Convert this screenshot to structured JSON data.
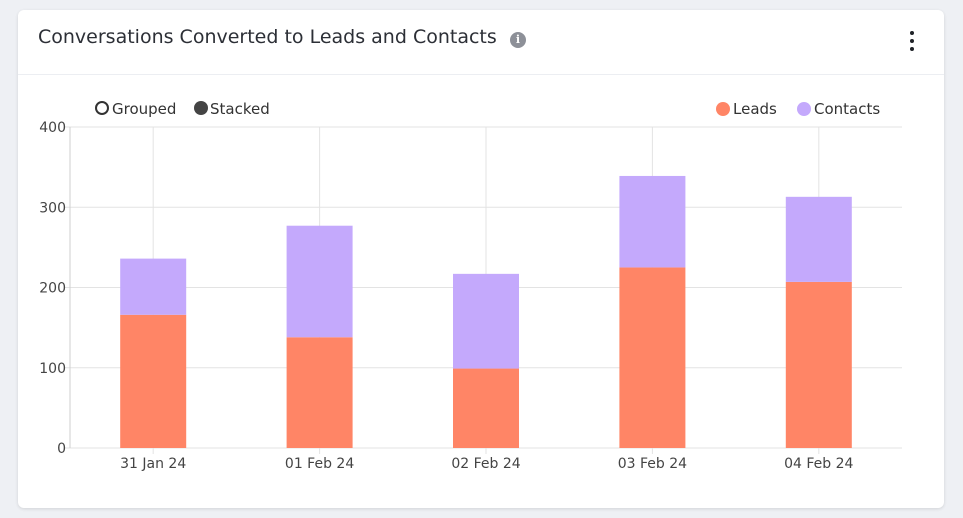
{
  "card": {
    "title": "Conversations Converted to Leads and Contacts",
    "info_icon": "info-icon",
    "menu_icon": "kebab-menu-icon"
  },
  "mode_options": [
    {
      "label": "Grouped",
      "selected": false
    },
    {
      "label": "Stacked",
      "selected": true
    }
  ],
  "colors": {
    "leads": "#ff8566",
    "contacts": "#c4a9fc",
    "grid": "#e3e3e3",
    "axis": "#555555",
    "tick_text": "#444444"
  },
  "chart_data": {
    "type": "bar",
    "stacked": true,
    "title": "Conversations Converted to Leads and Contacts",
    "categories": [
      "31 Jan 24",
      "01 Feb 24",
      "02 Feb 24",
      "03 Feb 24",
      "04 Feb 24"
    ],
    "series": [
      {
        "name": "Leads",
        "values": [
          166,
          138,
          99,
          225,
          207
        ]
      },
      {
        "name": "Contacts",
        "values": [
          70,
          139,
          118,
          114,
          106
        ]
      }
    ],
    "ylim": [
      0,
      400
    ],
    "yticks": [
      0,
      100,
      200,
      300,
      400
    ],
    "grid": true,
    "legend": "top-right",
    "xlabel": "",
    "ylabel": ""
  }
}
